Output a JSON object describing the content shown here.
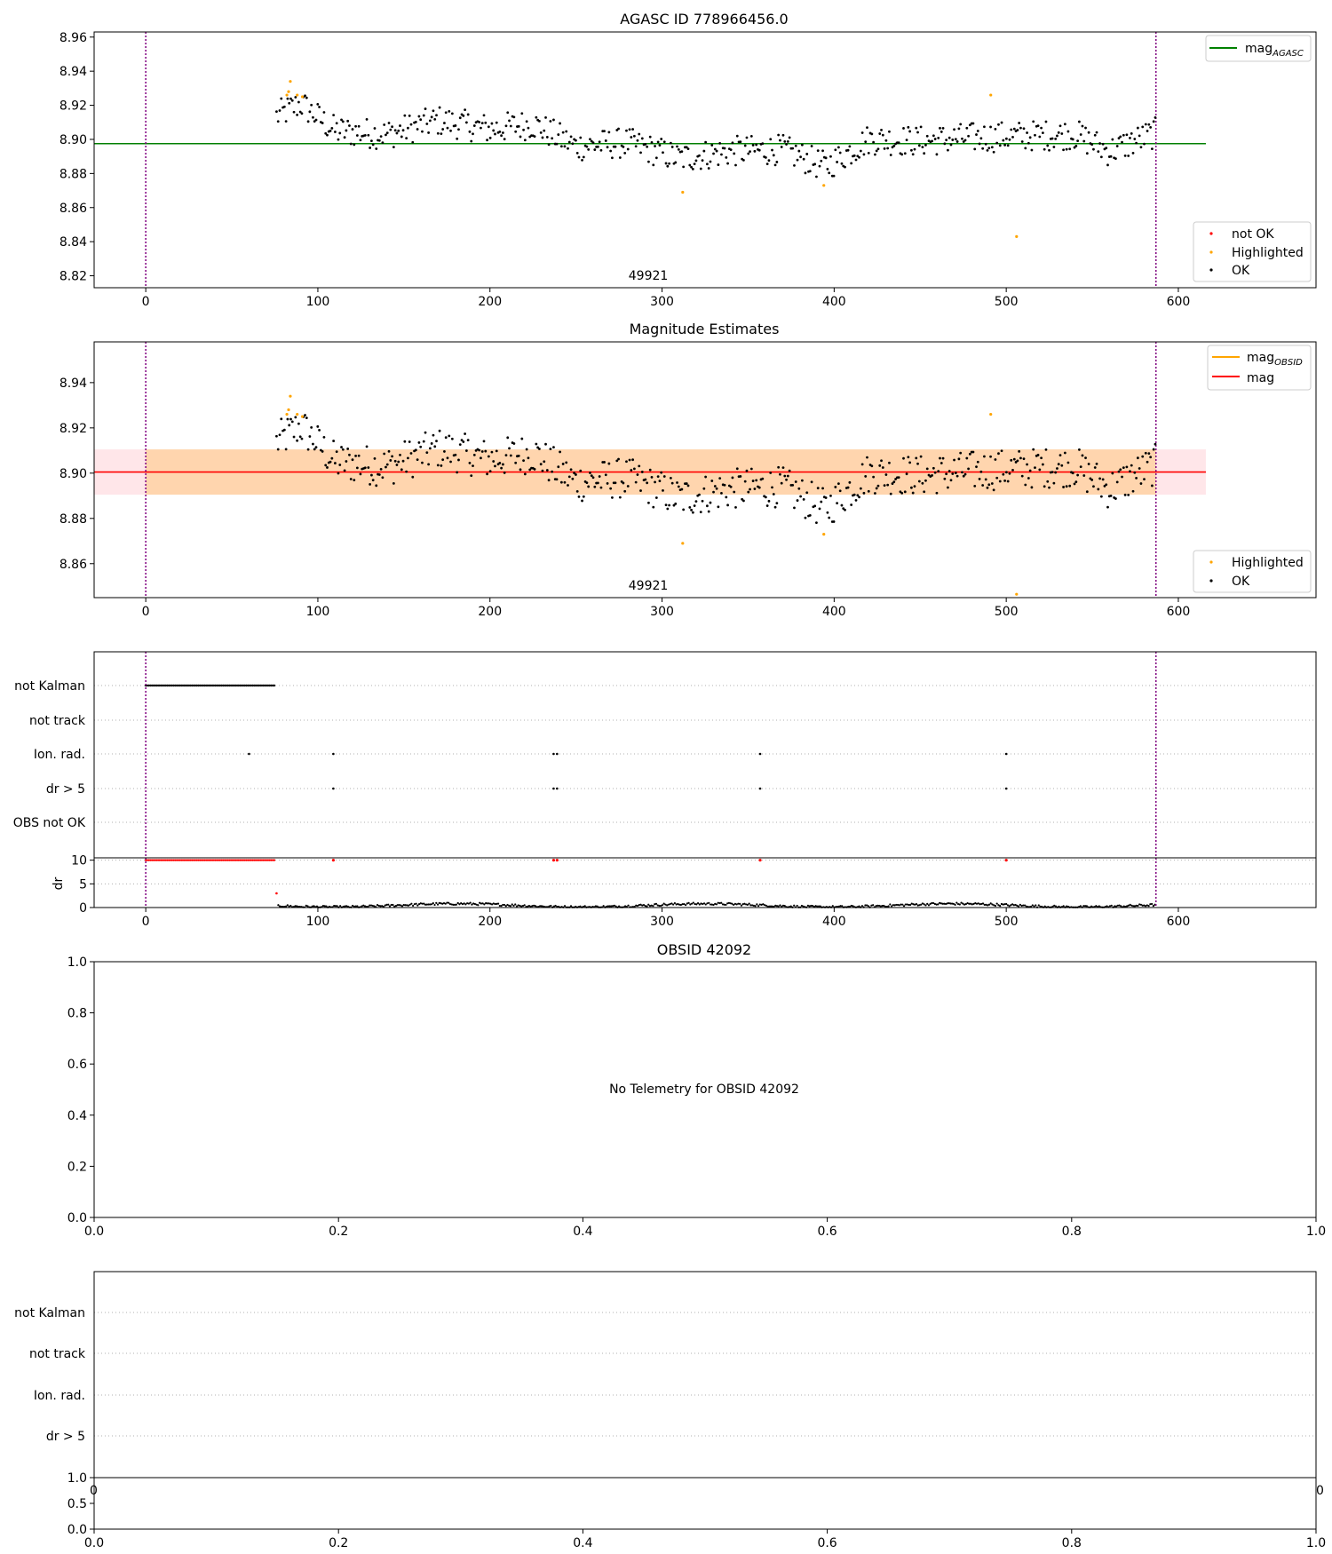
{
  "chart_data": [
    {
      "type": "scatter",
      "title": "AGASC ID 778966456.0",
      "xlim": [
        -30,
        680
      ],
      "ylim": [
        8.813,
        8.963
      ],
      "xticks": [
        0,
        100,
        200,
        300,
        400,
        500,
        600
      ],
      "yticks": [
        8.82,
        8.84,
        8.86,
        8.88,
        8.9,
        8.92,
        8.94,
        8.96
      ],
      "ytick_labels": [
        "8.82",
        "8.84",
        "8.86",
        "8.88",
        "8.90",
        "8.92",
        "8.94",
        "8.96"
      ],
      "obsid_label": "49921",
      "obsid_label_x": 292,
      "boundary_lines_x": [
        0,
        587
      ],
      "hlines": [
        {
          "name": "mag_AGASC",
          "y": 8.8975,
          "x": [
            -30,
            616
          ],
          "color": "#008000"
        }
      ],
      "legend_top": [
        {
          "label": "mag",
          "sub": "AGASC",
          "color": "#008000"
        }
      ],
      "legend_bottom": [
        {
          "label": "not OK",
          "color": "#ff0000"
        },
        {
          "label": "Highlighted",
          "color": "#ffa500"
        },
        {
          "label": "OK",
          "color": "#000000"
        }
      ],
      "highlighted": [
        [
          82,
          8.926
        ],
        [
          83,
          8.928
        ],
        [
          84,
          8.934
        ],
        [
          88,
          8.926
        ],
        [
          91,
          8.925
        ],
        [
          312,
          8.869
        ],
        [
          394,
          8.873
        ],
        [
          491,
          8.926
        ],
        [
          506,
          8.843
        ]
      ]
    },
    {
      "type": "scatter",
      "title": "Magnitude Estimates",
      "xlim": [
        -30,
        680
      ],
      "ylim": [
        8.845,
        8.958
      ],
      "xticks": [
        0,
        100,
        200,
        300,
        400,
        500,
        600
      ],
      "yticks": [
        8.86,
        8.88,
        8.9,
        8.92,
        8.94
      ],
      "ytick_labels": [
        "8.86",
        "8.88",
        "8.90",
        "8.92",
        "8.94"
      ],
      "obsid_label": "49921",
      "obsid_label_x": 292,
      "boundary_lines_x": [
        0,
        587
      ],
      "mag_line_y": 8.9005,
      "band_y": [
        8.8905,
        8.9105
      ],
      "band_x": [
        -30,
        616
      ],
      "inner_band_x": [
        0,
        587
      ],
      "legend_top": [
        {
          "label": "mag",
          "sub": "OBSID",
          "color": "#ffa500"
        },
        {
          "label": "mag",
          "sub": "",
          "color": "#ff0000"
        }
      ],
      "legend_bottom": [
        {
          "label": "Highlighted",
          "color": "#ffa500"
        },
        {
          "label": "OK",
          "color": "#000000"
        }
      ],
      "highlighted": [
        [
          82,
          8.926
        ],
        [
          83,
          8.928
        ],
        [
          84,
          8.934
        ],
        [
          88,
          8.926
        ],
        [
          91,
          8.925
        ],
        [
          312,
          8.869
        ],
        [
          394,
          8.873
        ],
        [
          491,
          8.926
        ],
        [
          506,
          8.846
        ]
      ]
    },
    {
      "type": "scatter",
      "title": "",
      "categories": [
        "not Kalman",
        "not track",
        "Ion. rad.",
        "dr > 5",
        "OBS not OK"
      ],
      "xlim": [
        -30,
        680
      ],
      "xticks": [
        0,
        100,
        200,
        300,
        400,
        500,
        600
      ],
      "boundary_lines_x": [
        0,
        587
      ],
      "not_kalman_range": [
        0,
        75
      ],
      "ion_rad_times": [
        60,
        109,
        237,
        239,
        357,
        500
      ],
      "dr5_times": [
        109,
        237,
        239,
        357,
        500
      ],
      "dr_ylabel": "dr",
      "dr_yticks": [
        0,
        5,
        10
      ],
      "dr_ylim": [
        0,
        10.5
      ],
      "dr_red_times": [
        109,
        237,
        239,
        357,
        500
      ]
    },
    {
      "type": "scatter",
      "title": "OBSID 42092",
      "message": "No Telemetry for OBSID 42092",
      "xlim": [
        0,
        1
      ],
      "ylim": [
        0,
        1
      ],
      "xtick_labels": [
        "0.0",
        "0.2",
        "0.4",
        "0.6",
        "0.8",
        "1.0"
      ],
      "ytick_labels": [
        "0.0",
        "0.2",
        "0.4",
        "0.6",
        "0.8",
        "1.0"
      ]
    },
    {
      "type": "scatter",
      "title": "",
      "categories": [
        "not Kalman",
        "not track",
        "Ion. rad.",
        "dr > 5"
      ],
      "xlim": [
        0,
        1
      ],
      "ylim": [
        0,
        1
      ],
      "xtick_labels": [
        "0.0",
        "0.2",
        "0.4",
        "0.6",
        "0.8",
        "1.0"
      ],
      "sub_yticks": [
        0,
        0.5,
        1
      ],
      "sub_ytick_labels": [
        "0.0",
        "0.5",
        "1.0"
      ],
      "clipped_left_label": "0",
      "clipped_right_label": "0"
    }
  ]
}
